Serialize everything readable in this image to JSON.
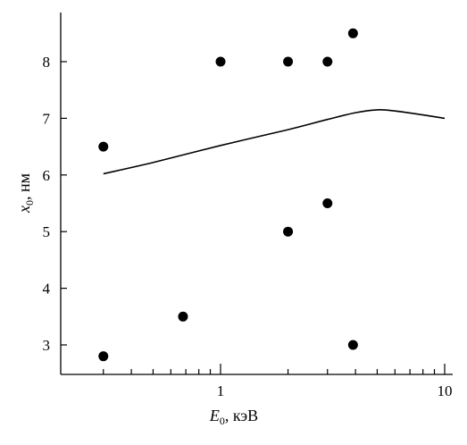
{
  "chart_data": {
    "type": "scatter",
    "xscale": "log",
    "xlim": [
      0.25,
      10
    ],
    "ylim": [
      2.45,
      8.95
    ],
    "x_ticks": [
      {
        "value": 1,
        "label": "1"
      },
      {
        "value": 10,
        "label": "10"
      }
    ],
    "y_ticks": [
      {
        "value": 3,
        "label": "3"
      },
      {
        "value": 4,
        "label": "4"
      },
      {
        "value": 5,
        "label": "5"
      },
      {
        "value": 6,
        "label": "6"
      },
      {
        "value": 7,
        "label": "7"
      },
      {
        "value": 8,
        "label": "8"
      }
    ],
    "xlabel": {
      "symbol": "E",
      "subscript": "0",
      "rest": ", кэВ"
    },
    "ylabel": {
      "symbol": "x",
      "subscript": "0",
      "rest": ", нм"
    },
    "points": [
      {
        "x": 0.3,
        "y": 6.5
      },
      {
        "x": 0.3,
        "y": 2.8
      },
      {
        "x": 0.68,
        "y": 3.5
      },
      {
        "x": 1.0,
        "y": 8.0
      },
      {
        "x": 2.0,
        "y": 8.0
      },
      {
        "x": 2.0,
        "y": 5.0
      },
      {
        "x": 3.0,
        "y": 8.0
      },
      {
        "x": 3.0,
        "y": 5.5
      },
      {
        "x": 3.9,
        "y": 8.5
      },
      {
        "x": 3.9,
        "y": 3.0
      }
    ],
    "curve": [
      {
        "x": 0.3,
        "y": 6.02
      },
      {
        "x": 0.5,
        "y": 6.22
      },
      {
        "x": 1.0,
        "y": 6.52
      },
      {
        "x": 2.0,
        "y": 6.8
      },
      {
        "x": 3.0,
        "y": 6.98
      },
      {
        "x": 4.0,
        "y": 7.1
      },
      {
        "x": 5.0,
        "y": 7.15
      },
      {
        "x": 6.0,
        "y": 7.13
      },
      {
        "x": 8.0,
        "y": 7.06
      },
      {
        "x": 10.0,
        "y": 7.0
      }
    ]
  }
}
